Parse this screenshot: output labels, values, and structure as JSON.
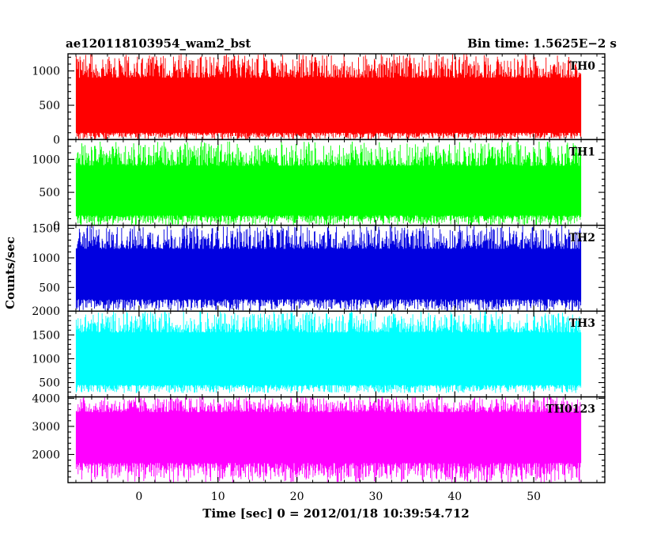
{
  "chart_data": {
    "type": "line",
    "title_left": "ae120118103954_wam2_bst",
    "title_right": "Bin time: 1.5625E−2 s",
    "xlabel": "Time [sec] 0 = 2012/01/18 10:39:54.712",
    "ylabel": "Counts/sec",
    "xlim": [
      -9,
      59
    ],
    "x_data_range": [
      -8,
      56
    ],
    "x_ticks": [
      0,
      10,
      20,
      30,
      40,
      50
    ],
    "x_tick_labels": [
      "0",
      "10",
      "20",
      "30",
      "40",
      "50"
    ],
    "grid": false,
    "panels": [
      {
        "name": "TH0",
        "color": "#ff0000",
        "ylim": [
          0,
          1250
        ],
        "y_ticks": [
          0,
          500,
          1000
        ],
        "y_tick_labels": [
          "0",
          "500",
          "1000"
        ],
        "typical_range": [
          100,
          900
        ],
        "peak_range": [
          0,
          1250
        ]
      },
      {
        "name": "TH1",
        "color": "#00ff00",
        "ylim": [
          0,
          1300
        ],
        "y_ticks": [
          0,
          500,
          1000
        ],
        "y_tick_labels": [
          "0",
          "500",
          "1000"
        ],
        "typical_range": [
          150,
          900
        ],
        "peak_range": [
          0,
          1270
        ]
      },
      {
        "name": "TH2",
        "color": "#0000e0",
        "ylim": [
          100,
          1550
        ],
        "y_ticks": [
          500,
          1000,
          1500
        ],
        "y_tick_labels": [
          "500",
          "1000",
          "1500"
        ],
        "typical_range": [
          300,
          1150
        ],
        "peak_range": [
          100,
          1550
        ]
      },
      {
        "name": "TH3",
        "color": "#00ffff",
        "ylim": [
          200,
          2000
        ],
        "y_ticks": [
          500,
          1000,
          1500,
          2000
        ],
        "y_tick_labels": [
          "500",
          "1000",
          "1500",
          "2000"
        ],
        "typical_range": [
          450,
          1550
        ],
        "peak_range": [
          280,
          2000
        ]
      },
      {
        "name": "TH0123",
        "color": "#ff00ff",
        "ylim": [
          1000,
          4050
        ],
        "y_ticks": [
          2000,
          3000,
          4000
        ],
        "y_tick_labels": [
          "2000",
          "3000",
          "4000"
        ],
        "typical_range": [
          1700,
          3500
        ],
        "peak_range": [
          1000,
          4050
        ]
      }
    ]
  }
}
